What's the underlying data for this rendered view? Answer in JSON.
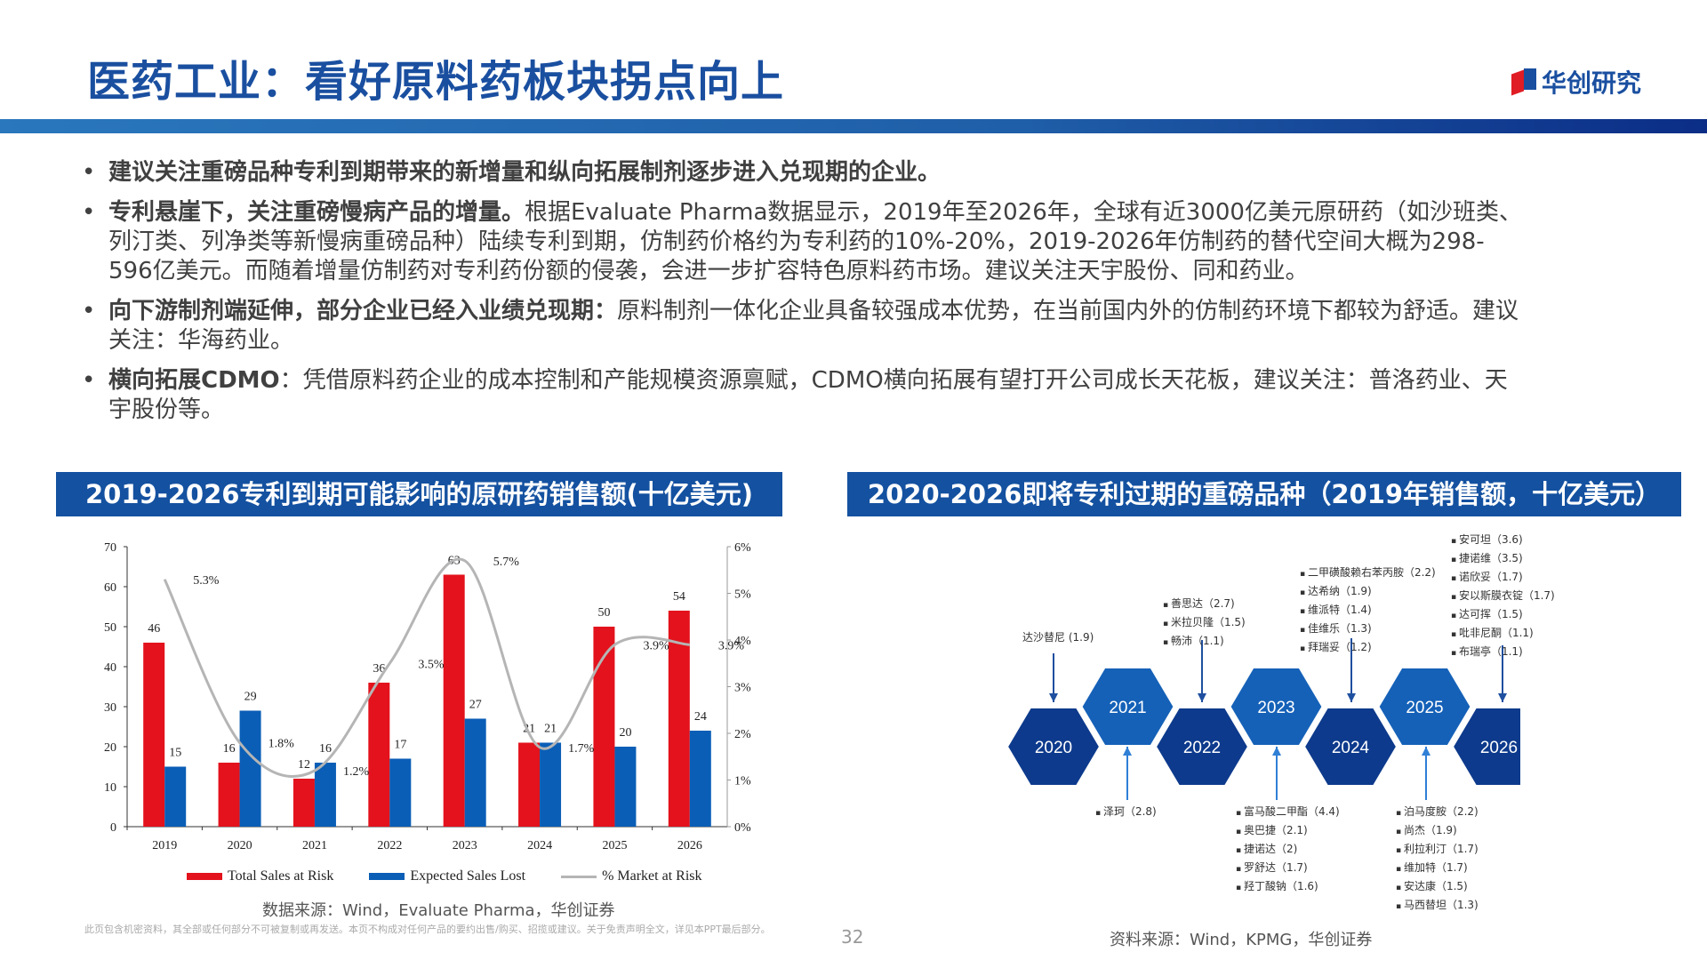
{
  "header": {
    "title": "医药工业：看好原料药板块拐点向上",
    "logo_text": "华创研究"
  },
  "bullets": [
    {
      "bold": "建议关注重磅品种专利到期带来的新增量和纵向拓展制剂逐步进入兑现期的企业。",
      "text": ""
    },
    {
      "bold": "专利悬崖下，关注重磅慢病产品的增量。",
      "text": "根据Evaluate Pharma数据显示，2019年至2026年，全球有近3000亿美元原研药（如沙班类、列汀类、列净类等新慢病重磅品种）陆续专利到期，仿制药价格约为专利药的10%-20%，2019-2026年仿制药的替代空间大概为298-596亿美元。而随着增量仿制药对专利药份额的侵袭，会进一步扩容特色原料药市场。建议关注天宇股份、同和药业。"
    },
    {
      "bold": "向下游制剂端延伸，部分企业已经入业绩兑现期：",
      "text": "原料制剂一体化企业具备较强成本优势，在当前国内外的仿制药环境下都较为舒适。建议关注：华海药业。"
    },
    {
      "bold": "横向拓展CDMO",
      "text": "：凭借原料药企业的成本控制和产能规模资源禀赋，CDMO横向拓展有望打开公司成长天花板，建议关注：普洛药业、天宇股份等。"
    }
  ],
  "left_section": {
    "heading": "2019-2026专利到期可能影响的原研药销售额(十亿美元)",
    "source": "数据来源：Wind，Evaluate Pharma，华创证券"
  },
  "right_section": {
    "heading": "2020-2026即将专利过期的重磅品种（2019年销售额，十亿美元）",
    "source": "资料来源：Wind，KPMG，华创证券",
    "years": [
      "2020",
      "2021",
      "2022",
      "2023",
      "2024",
      "2025",
      "2026"
    ],
    "drugs": {
      "2020": [
        "达沙替尼 (1.9)"
      ],
      "2021": [
        "泽珂（2.8)"
      ],
      "2022": [
        "善思达（2.7)",
        "米拉贝隆（1.5)",
        "畅沛（1.1)"
      ],
      "2023": [
        "富马酸二甲酯（4.4)",
        "奥巴捷（2.1)",
        "捷诺达（2)",
        "罗舒达（1.7)",
        "羟丁酸钠（1.6)"
      ],
      "2024": [
        "二甲磺酸赖右苯丙胺（2.2)",
        "达希纳（1.9)",
        "维派特（1.4)",
        "佳维乐（1.3)",
        "拜瑞妥（1.2)"
      ],
      "2025": [
        "泊马度胺（2.2)",
        "尚杰（1.9)",
        "利拉利汀（1.7)",
        "维加特（1.7)",
        "安达康（1.5)",
        "马西替坦（1.3)"
      ],
      "2026": [
        "安可坦（3.6)",
        "捷诺维（3.5)",
        "诺欣妥（1.7)",
        "安以斯膜衣锭（1.7)",
        "达可挥（1.5)",
        "吡非尼酮（1.1)",
        "布瑞亭（1.1)"
      ]
    }
  },
  "footer": {
    "disclaimer": "此页包含机密资料，其全部或任何部分不可被复制或再发送。本页不构成对任何产品的要约出售/购买、招揽或建议。关于免责声明全文，详见本PPT最后部分。",
    "page_number": "32"
  },
  "colors": {
    "red": "#e3121c",
    "blue": "#0a5eb6",
    "line": "#b5b5b5",
    "brand": "#1a4fa0"
  },
  "chart_data": {
    "type": "bar",
    "title": "2019-2026专利到期可能影响的原研药销售额(十亿美元)",
    "categories": [
      "2019",
      "2020",
      "2021",
      "2022",
      "2023",
      "2024",
      "2025",
      "2026"
    ],
    "series": [
      {
        "name": "Total Sales at Risk",
        "type": "bar",
        "axis": "left",
        "values": [
          46,
          16,
          12,
          36,
          63,
          21,
          50,
          54
        ]
      },
      {
        "name": "Expected Sales Lost",
        "type": "bar",
        "axis": "left",
        "values": [
          15,
          29,
          16,
          17,
          27,
          21,
          20,
          24
        ]
      },
      {
        "name": "% Market at Risk",
        "type": "line",
        "axis": "right",
        "values": [
          5.3,
          1.8,
          1.2,
          3.5,
          5.7,
          1.7,
          3.9,
          3.9
        ],
        "labels": [
          "5.3%",
          "1.8%",
          "1.2%",
          "3.5%",
          "5.7%",
          "1.7%",
          "3.9%",
          "3.9%"
        ]
      }
    ],
    "ylim": [
      0,
      70
    ],
    "yticks": [
      0,
      10,
      20,
      30,
      40,
      50,
      60,
      70
    ],
    "y2lim": [
      0,
      6
    ],
    "y2ticks": [
      "0%",
      "1%",
      "2%",
      "3%",
      "4%",
      "5%",
      "6%"
    ],
    "xlabel": "",
    "ylabel": "",
    "legend": [
      "Total Sales at Risk",
      "Expected Sales Lost",
      "% Market at Risk"
    ],
    "legend_position": "bottom",
    "grid": false
  }
}
